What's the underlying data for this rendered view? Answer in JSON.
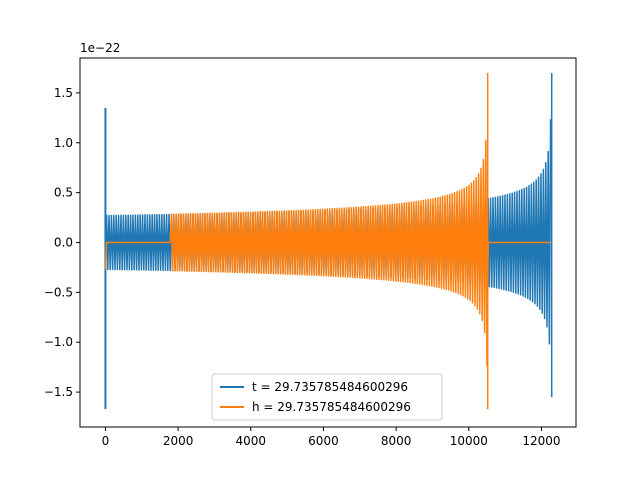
{
  "chart_data": {
    "type": "line",
    "title": "",
    "xlabel": "",
    "ylabel": "",
    "offset_label": "1e−22",
    "xlim": [
      -700,
      12950
    ],
    "ylim": [
      -1.85,
      1.85
    ],
    "xticks": [
      0,
      2000,
      4000,
      6000,
      8000,
      10000,
      12000
    ],
    "xtick_labels": [
      "0",
      "2000",
      "4000",
      "6000",
      "8000",
      "10000",
      "12000"
    ],
    "yticks": [
      -1.5,
      -1.0,
      -0.5,
      0.0,
      0.5,
      1.0,
      1.5
    ],
    "ytick_labels": [
      "−1.5",
      "−1.0",
      "−0.5",
      "0.0",
      "0.5",
      "1.0",
      "1.5"
    ],
    "grid": false,
    "legend_position": "lower-center",
    "series": [
      {
        "name": "t = 29.735785484600296",
        "color": "#1f77b4",
        "kind": "chirp",
        "x_start": 0,
        "x_peak": 12280,
        "amp_start": 0.27,
        "amp_peak": 1.7,
        "amp_min": -1.55,
        "initial_spike": {
          "x": 0,
          "max": 1.35,
          "min": -1.67
        }
      },
      {
        "name": "h = 29.735785484600296",
        "color": "#ff7f0e",
        "kind": "chirp",
        "x_start": 0,
        "x_peak": 10520,
        "amp_start": 0.27,
        "amp_peak": 1.7,
        "amp_min": -1.67,
        "flat_segments": [
          [
            0,
            1800
          ],
          [
            10530,
            12280
          ]
        ],
        "initial_spike": {
          "x": 0,
          "max": 0.0,
          "min": 0.0
        }
      }
    ]
  }
}
